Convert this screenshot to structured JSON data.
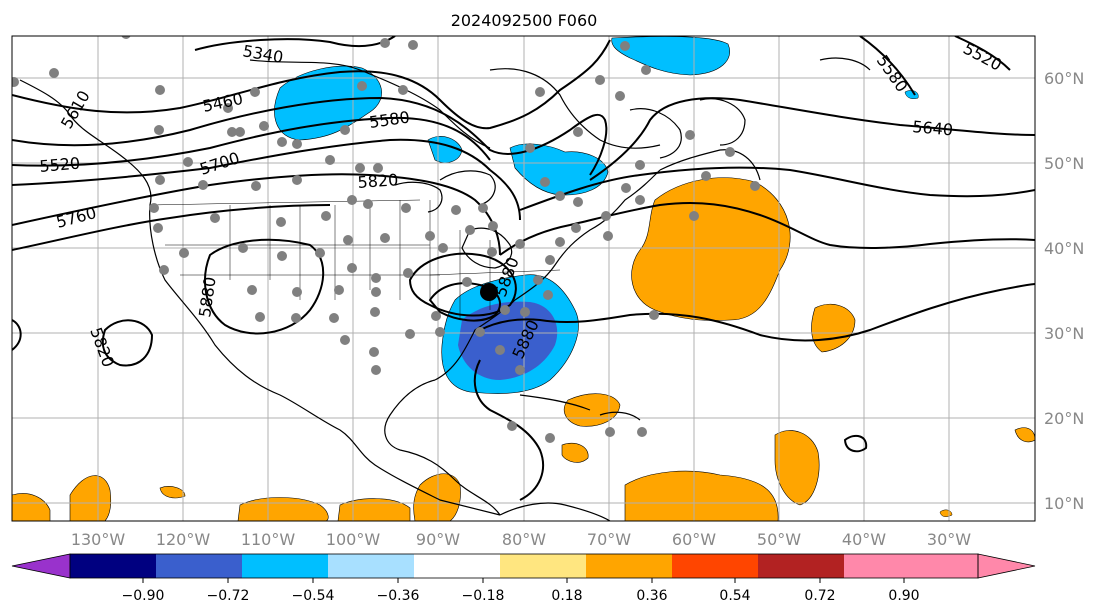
{
  "title": "2024092500 F060",
  "lon_labels": [
    "130°W",
    "120°W",
    "110°W",
    "100°W",
    "90°W",
    "80°W",
    "70°W",
    "60°W",
    "50°W",
    "40°W",
    "30°W"
  ],
  "lat_labels": [
    "60°N",
    "50°N",
    "40°N",
    "30°N",
    "20°N",
    "10°N"
  ],
  "colorbar": {
    "ticks": [
      "−0.90",
      "−0.72",
      "−0.54",
      "−0.36",
      "−0.18",
      "0.18",
      "0.36",
      "0.54",
      "0.72",
      "0.90"
    ],
    "colors": [
      "#9932cc",
      "#000080",
      "#3a5fcd",
      "#00bfff",
      "#a8e0ff",
      "#ffffff",
      "#ffe680",
      "#ffa500",
      "#ff4500",
      "#b22222",
      "#ff88aa"
    ]
  },
  "contour_labels": [
    {
      "text": "5340"
    },
    {
      "text": "5460"
    },
    {
      "text": "5520"
    },
    {
      "text": "5580"
    },
    {
      "text": "5700"
    },
    {
      "text": "5760"
    },
    {
      "text": "5820"
    },
    {
      "text": "5880"
    },
    {
      "text": "5520"
    },
    {
      "text": "5580"
    },
    {
      "text": "5640"
    },
    {
      "text": "5820"
    },
    {
      "text": "5880"
    },
    {
      "text": "5880"
    },
    {
      "text": "5610"
    }
  ],
  "colors": {
    "negative_shade": "#00bfff",
    "strong_negative_shade": "#3a5fcd",
    "positive_shade": "#ffa500",
    "contour": "#000000",
    "station_marker": "#808080",
    "storm_marker": "#000000",
    "grid": "#b0b0b0"
  }
}
